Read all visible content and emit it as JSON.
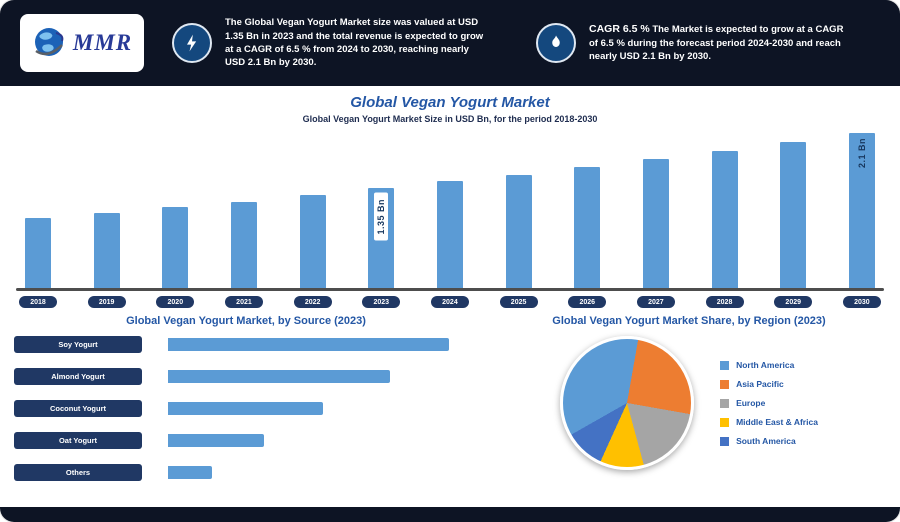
{
  "colors": {
    "header_bg": "#0d1424",
    "navy_label": "#203864",
    "bar_blue": "#5b9bd5",
    "title_blue": "#2457a5",
    "axis_gray": "#4d4d4d"
  },
  "header": {
    "logo_text": "MMR",
    "stat1": {
      "icon": "lightning-icon",
      "text": "The Global Vegan Yogurt Market size was valued at USD 1.35 Bn in 2023 and the total revenue is expected to grow at a CAGR of 6.5 % from 2024 to 2030, reaching nearly USD 2.1 Bn by 2030."
    },
    "stat2": {
      "icon": "flame-icon",
      "title": "CAGR 6.5 %",
      "text": "The Market is expected to grow at a CAGR of 6.5 % during the forecast period 2024-2030 and reach nearly USD 2.1 Bn by 2030."
    }
  },
  "chart_data": [
    {
      "type": "bar",
      "title": "Global Vegan Yogurt Market",
      "subtitle": "Global Vegan Yogurt Market Size in USD Bn, for the period 2018-2030",
      "unit": "USD Bn",
      "categories": [
        "2018",
        "2019",
        "2020",
        "2021",
        "2022",
        "2023",
        "2024",
        "2025",
        "2026",
        "2027",
        "2028",
        "2029",
        "2030"
      ],
      "values": [
        0.95,
        1.02,
        1.09,
        1.16,
        1.25,
        1.35,
        1.44,
        1.53,
        1.63,
        1.74,
        1.85,
        1.97,
        2.1
      ],
      "point_labels": [
        {
          "index": 5,
          "text": "1.35 Bn",
          "boxed": true
        },
        {
          "index": 12,
          "text": "2.1 Bn",
          "boxed": false
        }
      ],
      "bar_color": "#5b9bd5",
      "ylim": [
        0,
        2.2
      ],
      "grid": false
    },
    {
      "type": "bar",
      "orientation": "horizontal",
      "title": "Global Vegan Yogurt Market, by Source (2023)",
      "unit": "%",
      "categories": [
        "Soy Yogurt",
        "Almond Yogurt",
        "Coconut Yogurt",
        "Oat Yogurt",
        "Others"
      ],
      "values": [
        38,
        30,
        21,
        13,
        6
      ],
      "bar_color": "#5b9bd5",
      "label_bg": "#203864"
    },
    {
      "type": "pie",
      "title": "Global Vegan Yogurt Market Share, by Region (2023)",
      "labels": [
        "North America",
        "Asia Pacific",
        "Europe",
        "Middle East & Africa",
        "South America"
      ],
      "values": [
        36,
        25,
        18,
        11,
        10
      ],
      "colors": [
        "#5b9bd5",
        "#ed7d31",
        "#a5a5a5",
        "#ffc000",
        "#4472c4"
      ],
      "legend_position": "right",
      "start_angle_deg": 10,
      "draw_order": [
        1,
        2,
        3,
        4,
        0
      ]
    }
  ]
}
